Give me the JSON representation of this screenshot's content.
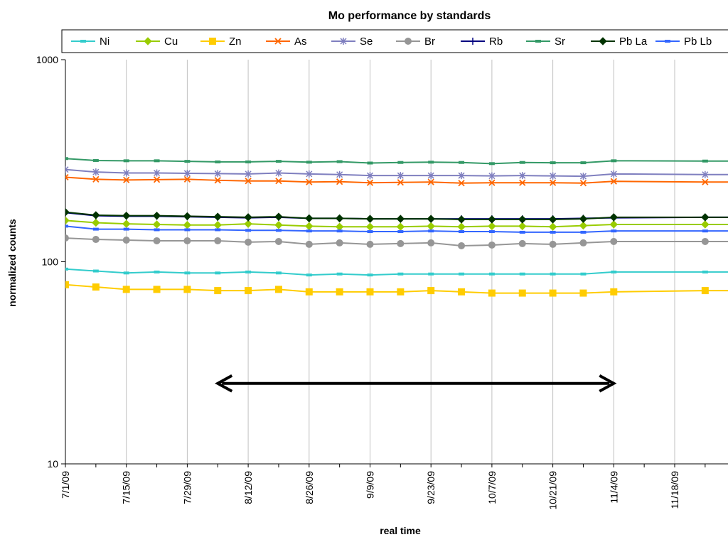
{
  "chart_data": {
    "type": "line",
    "title": "Mo performance by standards",
    "xlabel": "real time",
    "ylabel": "normalized counts",
    "yscale": "log",
    "ylim": [
      10,
      1000
    ],
    "y_ticks": [
      "10",
      "100",
      "1000"
    ],
    "x_range": [
      "2009-07-01",
      "2009-12-02"
    ],
    "x_ticks": [
      "7/1/09",
      "7/15/09",
      "7/29/09",
      "8/12/09",
      "8/26/09",
      "9/9/09",
      "9/23/09",
      "10/7/09",
      "10/21/09",
      "11/4/09",
      "11/18/09"
    ],
    "grid": "vertical",
    "legend_position": "top",
    "x": [
      "2009-07-01",
      "2009-07-08",
      "2009-07-15",
      "2009-07-22",
      "2009-07-29",
      "2009-08-05",
      "2009-08-12",
      "2009-08-19",
      "2009-08-26",
      "2009-09-02",
      "2009-09-09",
      "2009-09-16",
      "2009-09-23",
      "2009-09-30",
      "2009-10-07",
      "2009-10-14",
      "2009-10-21",
      "2009-10-28",
      "2009-11-04",
      "2009-11-25"
    ],
    "series": [
      {
        "name": "Ni",
        "color": "#33cccc",
        "marker": "dash",
        "values": [
          92,
          90,
          88,
          89,
          88,
          88,
          89,
          88,
          86,
          87,
          86,
          87,
          87,
          87,
          87,
          87,
          87,
          87,
          89,
          89
        ]
      },
      {
        "name": "Cu",
        "color": "#99cc00",
        "marker": "diamond",
        "values": [
          160,
          156,
          154,
          153,
          152,
          152,
          154,
          152,
          150,
          149,
          149,
          149,
          150,
          149,
          150,
          150,
          149,
          151,
          153,
          153
        ]
      },
      {
        "name": "Zn",
        "color": "#ffcc00",
        "marker": "square",
        "values": [
          77,
          75,
          73,
          73,
          73,
          72,
          72,
          73,
          71,
          71,
          71,
          71,
          72,
          71,
          70,
          70,
          70,
          70,
          71,
          72
        ]
      },
      {
        "name": "As",
        "color": "#ff6600",
        "marker": "x",
        "values": [
          262,
          256,
          254,
          255,
          256,
          253,
          251,
          251,
          248,
          249,
          246,
          247,
          248,
          245,
          246,
          246,
          246,
          245,
          250,
          248
        ]
      },
      {
        "name": "Se",
        "color": "#7f7fbf",
        "marker": "star",
        "values": [
          286,
          278,
          275,
          275,
          274,
          273,
          272,
          275,
          272,
          270,
          267,
          267,
          267,
          267,
          266,
          267,
          266,
          265,
          272,
          270
        ]
      },
      {
        "name": "Br",
        "color": "#969696",
        "marker": "circle",
        "values": [
          131,
          129,
          128,
          127,
          127,
          127,
          125,
          126,
          122,
          124,
          122,
          123,
          124,
          120,
          121,
          123,
          122,
          124,
          126,
          126
        ]
      },
      {
        "name": "Rb",
        "color": "#000080",
        "marker": "plus",
        "values": [
          175,
          169,
          168,
          168,
          167,
          166,
          165,
          166,
          164,
          164,
          163,
          163,
          163,
          163,
          163,
          163,
          163,
          164,
          165,
          166
        ]
      },
      {
        "name": "Sr",
        "color": "#339966",
        "marker": "dash",
        "values": [
          324,
          317,
          316,
          316,
          314,
          312,
          312,
          314,
          311,
          313,
          308,
          310,
          311,
          310,
          306,
          310,
          309,
          309,
          316,
          315
        ]
      },
      {
        "name": "Pb La",
        "color": "#003300",
        "marker": "diamond",
        "values": [
          176,
          170,
          169,
          169,
          168,
          167,
          166,
          167,
          164,
          164,
          163,
          163,
          163,
          162,
          162,
          162,
          162,
          163,
          166,
          166
        ]
      },
      {
        "name": "Pb Lb",
        "color": "#3366ff",
        "marker": "dash",
        "values": [
          150,
          145,
          145,
          144,
          144,
          144,
          143,
          143,
          142,
          142,
          141,
          141,
          142,
          141,
          141,
          140,
          140,
          140,
          142,
          142
        ]
      }
    ],
    "annotations": [
      {
        "type": "double-arrow",
        "from": "2009-08-05",
        "to": "2009-11-04",
        "y": 25,
        "color": "#000000"
      }
    ]
  }
}
